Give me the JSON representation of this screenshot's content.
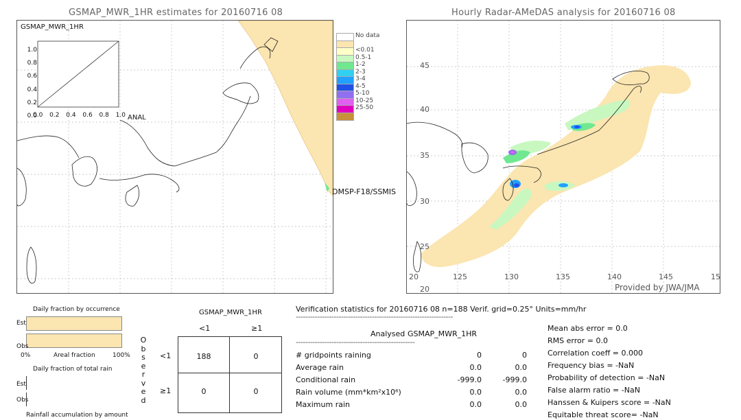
{
  "left_panel": {
    "title": "GSMAP_MWR_1HR estimates for 20160716 08",
    "inset_title": "GSMAP_MWR_1HR",
    "inset_yticks": [
      "1.0",
      "0.8",
      "0.6",
      "0.4",
      "0.2",
      "0.0"
    ],
    "inset_xticks": [
      "0.0",
      "0.2",
      "0.4",
      "0.6",
      "0.8",
      "1.0"
    ],
    "inset_xlabel": "ANAL",
    "swath_label": "DMSP-F18/SSMIS"
  },
  "right_panel": {
    "title": "Hourly Radar-AMeDAS analysis for 20160716 08",
    "lat_labels": [
      "45",
      "40",
      "35",
      "30",
      "25",
      "20"
    ],
    "lon_labels": [
      "20",
      "125",
      "130",
      "135",
      "140",
      "145",
      "15"
    ],
    "credit": "Provided by JWA/JMA"
  },
  "legend": {
    "items": [
      {
        "label": "No data",
        "color": "#ffffff"
      },
      {
        "label": "",
        "color": "#fbe5b0"
      },
      {
        "label": "<0.01",
        "color": "#ffffc8"
      },
      {
        "label": "0.5-1",
        "color": "#c8f8c0"
      },
      {
        "label": "1-2",
        "color": "#70e890"
      },
      {
        "label": "2-3",
        "color": "#30d0f0"
      },
      {
        "label": "3-4",
        "color": "#20a0ff"
      },
      {
        "label": "4-5",
        "color": "#2050e8"
      },
      {
        "label": "5-10",
        "color": "#9070f0"
      },
      {
        "label": "10-25",
        "color": "#e060f0"
      },
      {
        "label": "25-50",
        "color": "#e000c0"
      },
      {
        "label": "",
        "color": "#c8903a"
      }
    ]
  },
  "fraction_panel": {
    "occurrence_title": "Daily fraction by occurrence",
    "est_label": "Est",
    "obs_label": "Obs",
    "axis_left": "0%",
    "axis_mid": "Areal fraction",
    "axis_right": "100%",
    "total_rain_title": "Daily fraction of total rain",
    "est_label2": "Est",
    "obs_label2": "Obs",
    "accum_title": "Rainfall accumulation by amount",
    "bar_color": "#fbe5b0"
  },
  "contingency": {
    "title": "GSMAP_MWR_1HR",
    "col_lt1": "<1",
    "col_ge1": "≥1",
    "row_lt1": "<1",
    "row_ge1": "≥1",
    "observed_letters": [
      "O",
      "b",
      "s",
      "e",
      "r",
      "v",
      "e",
      "d"
    ],
    "cells": {
      "a": "188",
      "b": "0",
      "c": "0",
      "d": "0"
    }
  },
  "verification": {
    "header": "Verification statistics for 20160716 08   n=188   Verif. grid=0.25°   Units=mm/hr",
    "divider": "------------------------------------------------------------------",
    "col_analysed": "Analysed",
    "col_gsmap": "GSMAP_MWR_1HR",
    "divider2": "--------------------------------------------------",
    "rows": [
      {
        "label": "# gridpoints raining",
        "a": "0",
        "b": "0"
      },
      {
        "label": "Average rain",
        "a": "0.0",
        "b": "0.0"
      },
      {
        "label": "Conditional rain",
        "a": "-999.0",
        "b": "-999.0"
      },
      {
        "label": "Rain volume (mm*km²x10⁶)",
        "a": "0.0",
        "b": "0.0"
      },
      {
        "label": "Maximum rain",
        "a": "0.0",
        "b": "0.0"
      }
    ],
    "scores": [
      "Mean abs error = 0.0",
      "RMS error = 0.0",
      "Correlation coeff = 0.000",
      "Frequency bias = -NaN",
      "Probability of detection = -NaN",
      "False alarm ratio = -NaN",
      "Hanssen & Kuipers score = -NaN",
      "Equitable threat score= -NaN"
    ]
  },
  "chart_data": {
    "type": "table",
    "title": "GSMAP_MWR_1HR",
    "columns": [
      "<1",
      "≥1"
    ],
    "rows": [
      {
        "observed": "<1",
        "values": [
          188,
          0
        ]
      },
      {
        "observed": "≥1",
        "values": [
          0,
          0
        ]
      }
    ],
    "fraction_occurrence": {
      "Est": 1.0,
      "Obs": 1.0
    }
  }
}
